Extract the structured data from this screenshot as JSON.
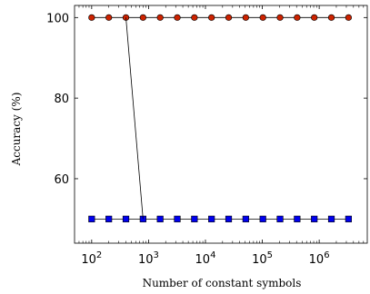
{
  "chart_data": {
    "type": "line",
    "title": "",
    "xlabel": "Number of constant symbols",
    "ylabel": "Accuracy (%)",
    "x_scale": "log",
    "xlim": [
      50,
      7000000
    ],
    "ylim": [
      44,
      103
    ],
    "grid": false,
    "legend": "none",
    "x_ticks": [
      {
        "value": 100,
        "base": "10",
        "exp": "2"
      },
      {
        "value": 1000,
        "base": "10",
        "exp": "3"
      },
      {
        "value": 10000,
        "base": "10",
        "exp": "4"
      },
      {
        "value": 100000,
        "base": "10",
        "exp": "5"
      },
      {
        "value": 1000000,
        "base": "10",
        "exp": "6"
      }
    ],
    "y_ticks": [
      60,
      80,
      100
    ],
    "series": [
      {
        "color": "#cc2200",
        "marker": "circle",
        "x": [
          100,
          200,
          400,
          800,
          1600,
          3200,
          6400,
          12800,
          25600,
          51200,
          102400,
          204800,
          409600,
          819200,
          1638400,
          3276800
        ],
        "y": [
          100,
          100,
          100,
          100,
          100,
          100,
          100,
          100,
          100,
          100,
          100,
          100,
          100,
          100,
          100,
          100
        ]
      },
      {
        "color": "#0000ee",
        "marker": "square",
        "x": [
          100,
          200,
          400,
          800,
          1600,
          3200,
          6400,
          12800,
          25600,
          51200,
          102400,
          204800,
          409600,
          819200,
          1638400,
          3276800
        ],
        "y": [
          50,
          50,
          50,
          50,
          50,
          50,
          50,
          50,
          50,
          50,
          50,
          50,
          50,
          50,
          50,
          50
        ]
      },
      {
        "color": "#000000",
        "marker": "none",
        "x": [
          400,
          800
        ],
        "y": [
          100,
          50
        ]
      }
    ]
  }
}
